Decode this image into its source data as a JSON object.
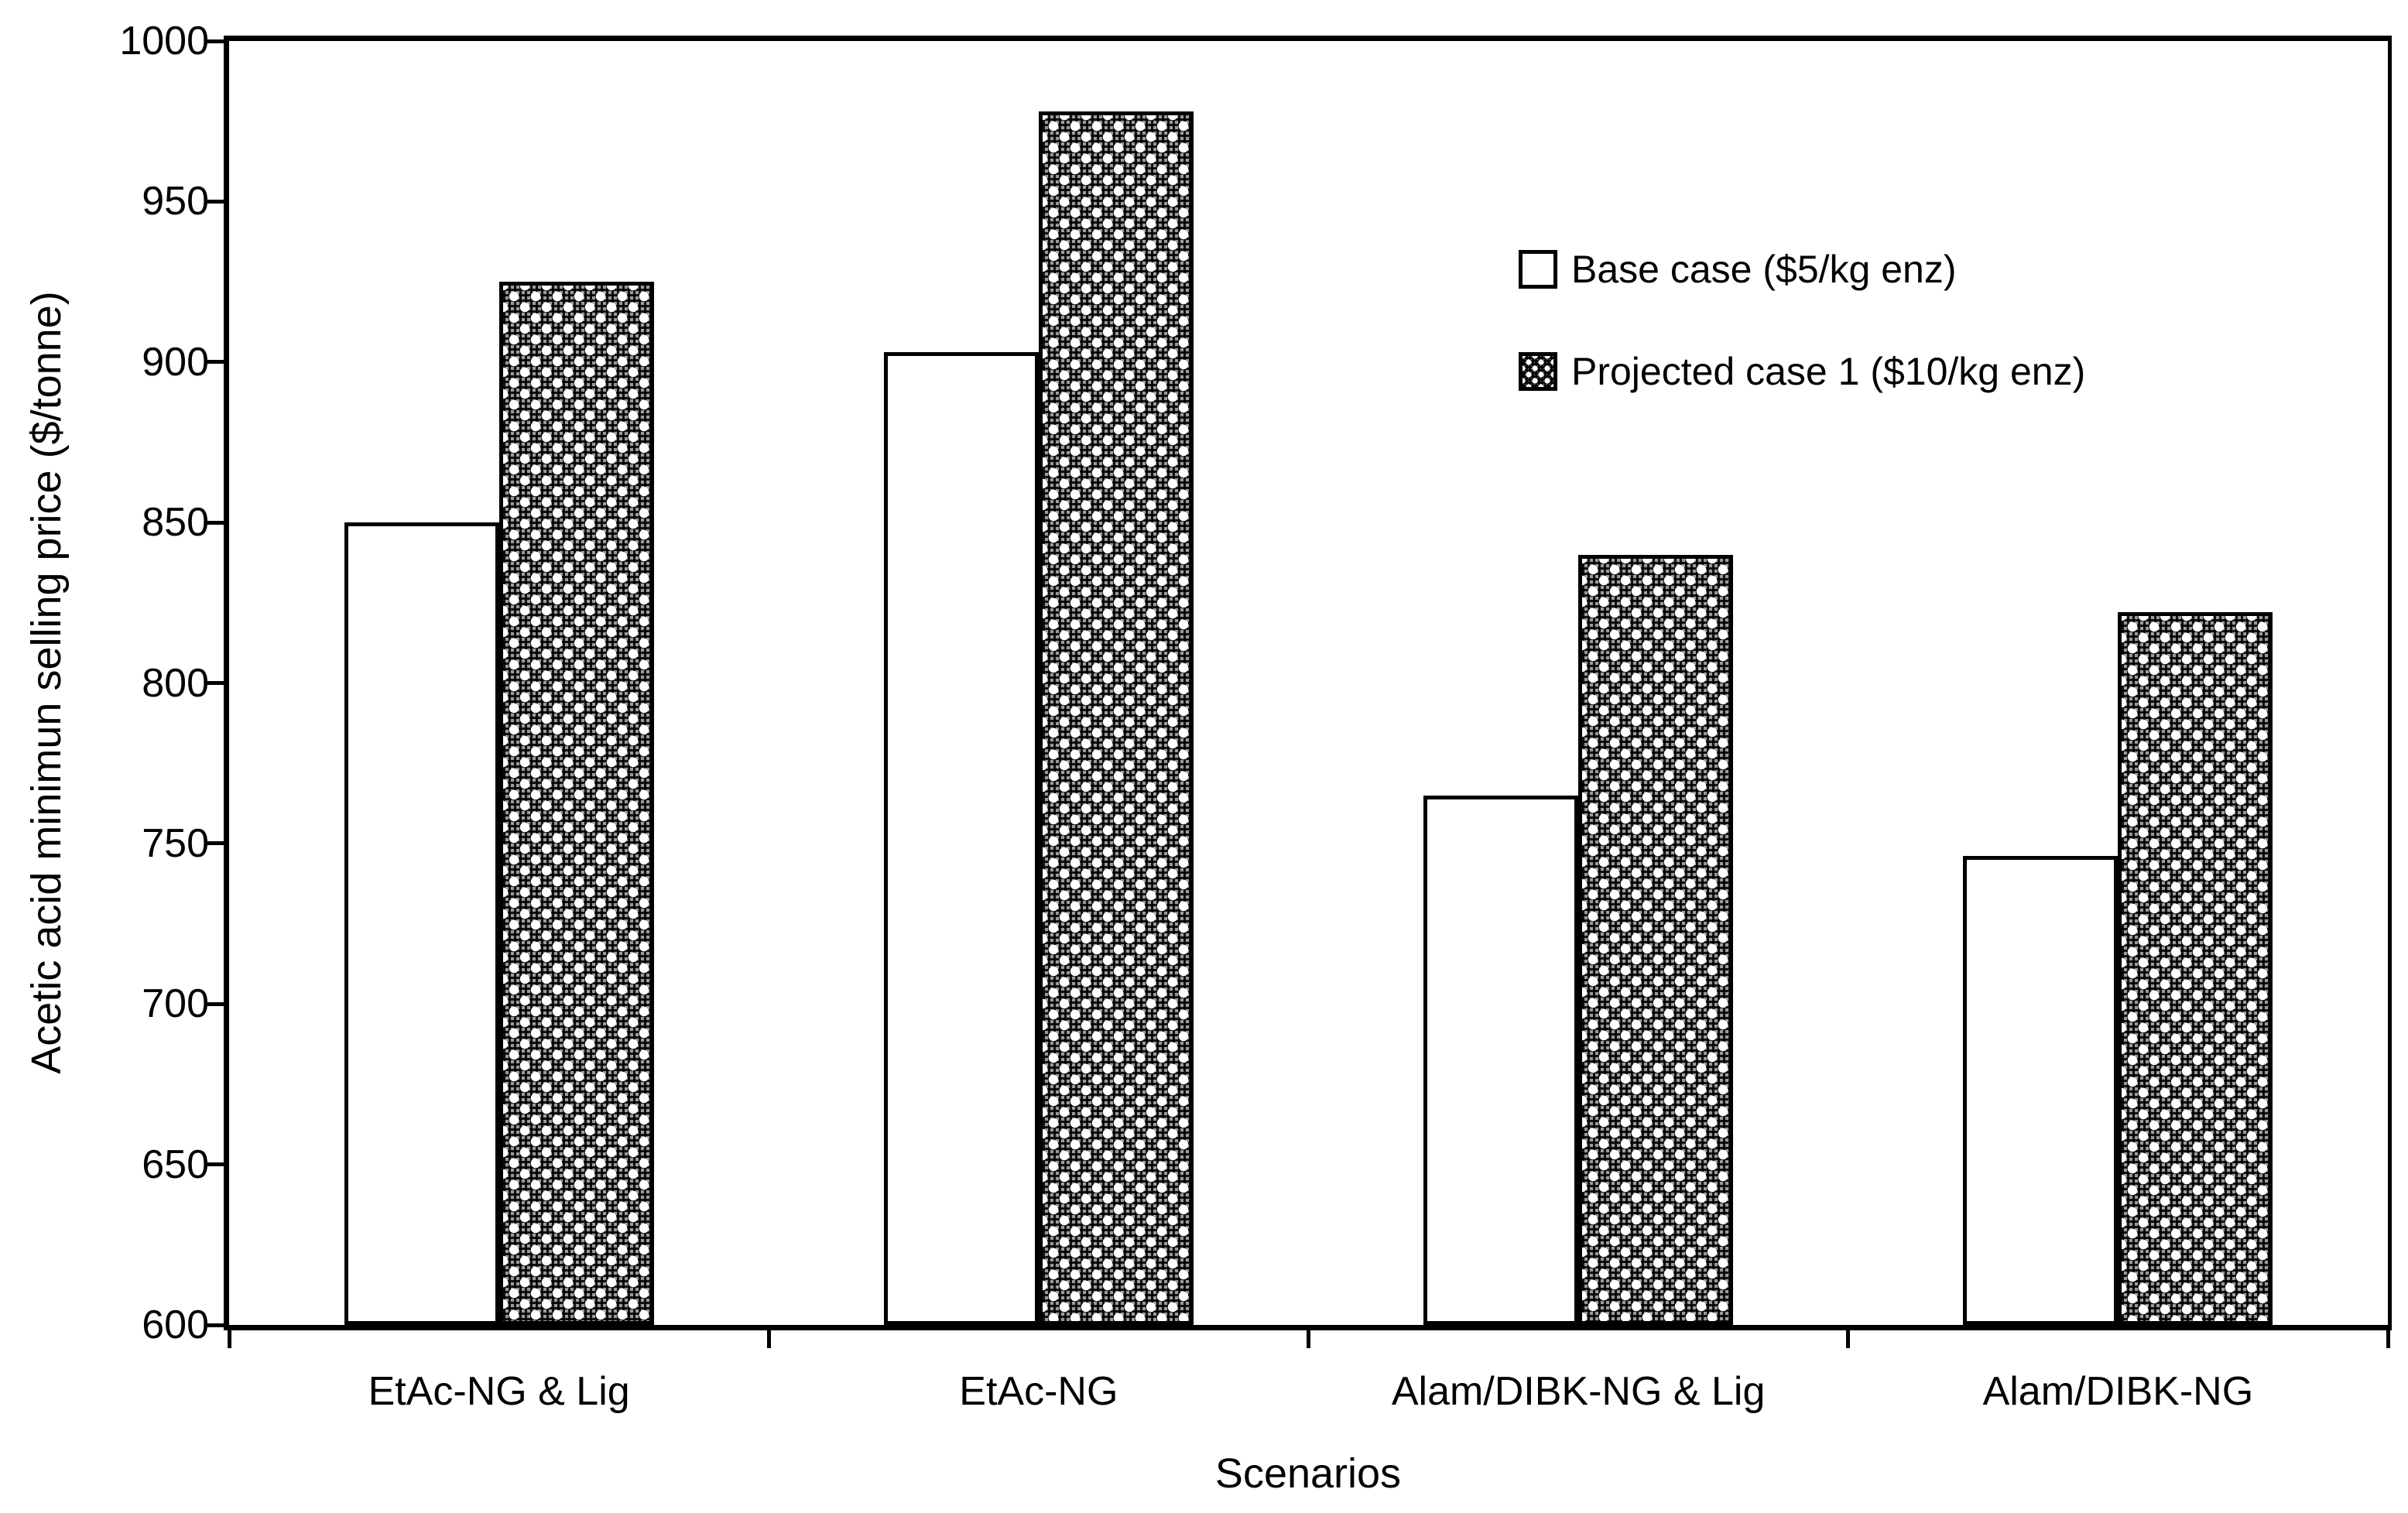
{
  "chart_data": {
    "type": "bar",
    "title": "",
    "xlabel": "Scenarios",
    "ylabel": "Acetic acid minimun selling price ($/tonne)",
    "ylim": [
      600,
      1000
    ],
    "ytick_step": 50,
    "yticks": [
      600,
      650,
      700,
      750,
      800,
      850,
      900,
      950,
      1000
    ],
    "grid": false,
    "legend_position": "upper-right-inside",
    "categories": [
      "EtAc-NG & Lig",
      "EtAc-NG",
      "Alam/DIBK-NG & Lig",
      "Alam/DIBK-NG"
    ],
    "series": [
      {
        "name": "Base case ($5/kg enz)",
        "values": [
          850,
          903,
          765,
          746
        ],
        "fill": "white"
      },
      {
        "name": "Projected case 1 ($10/kg enz)",
        "values": [
          925,
          978,
          840,
          822
        ],
        "fill": "dotted-gray-pattern"
      }
    ],
    "colors": {
      "axis": "#000000",
      "bar_outline": "#000000",
      "base_case_fill": "#ffffff",
      "projected_case_pattern_base": "#9b9b9b",
      "background": "#ffffff"
    }
  }
}
